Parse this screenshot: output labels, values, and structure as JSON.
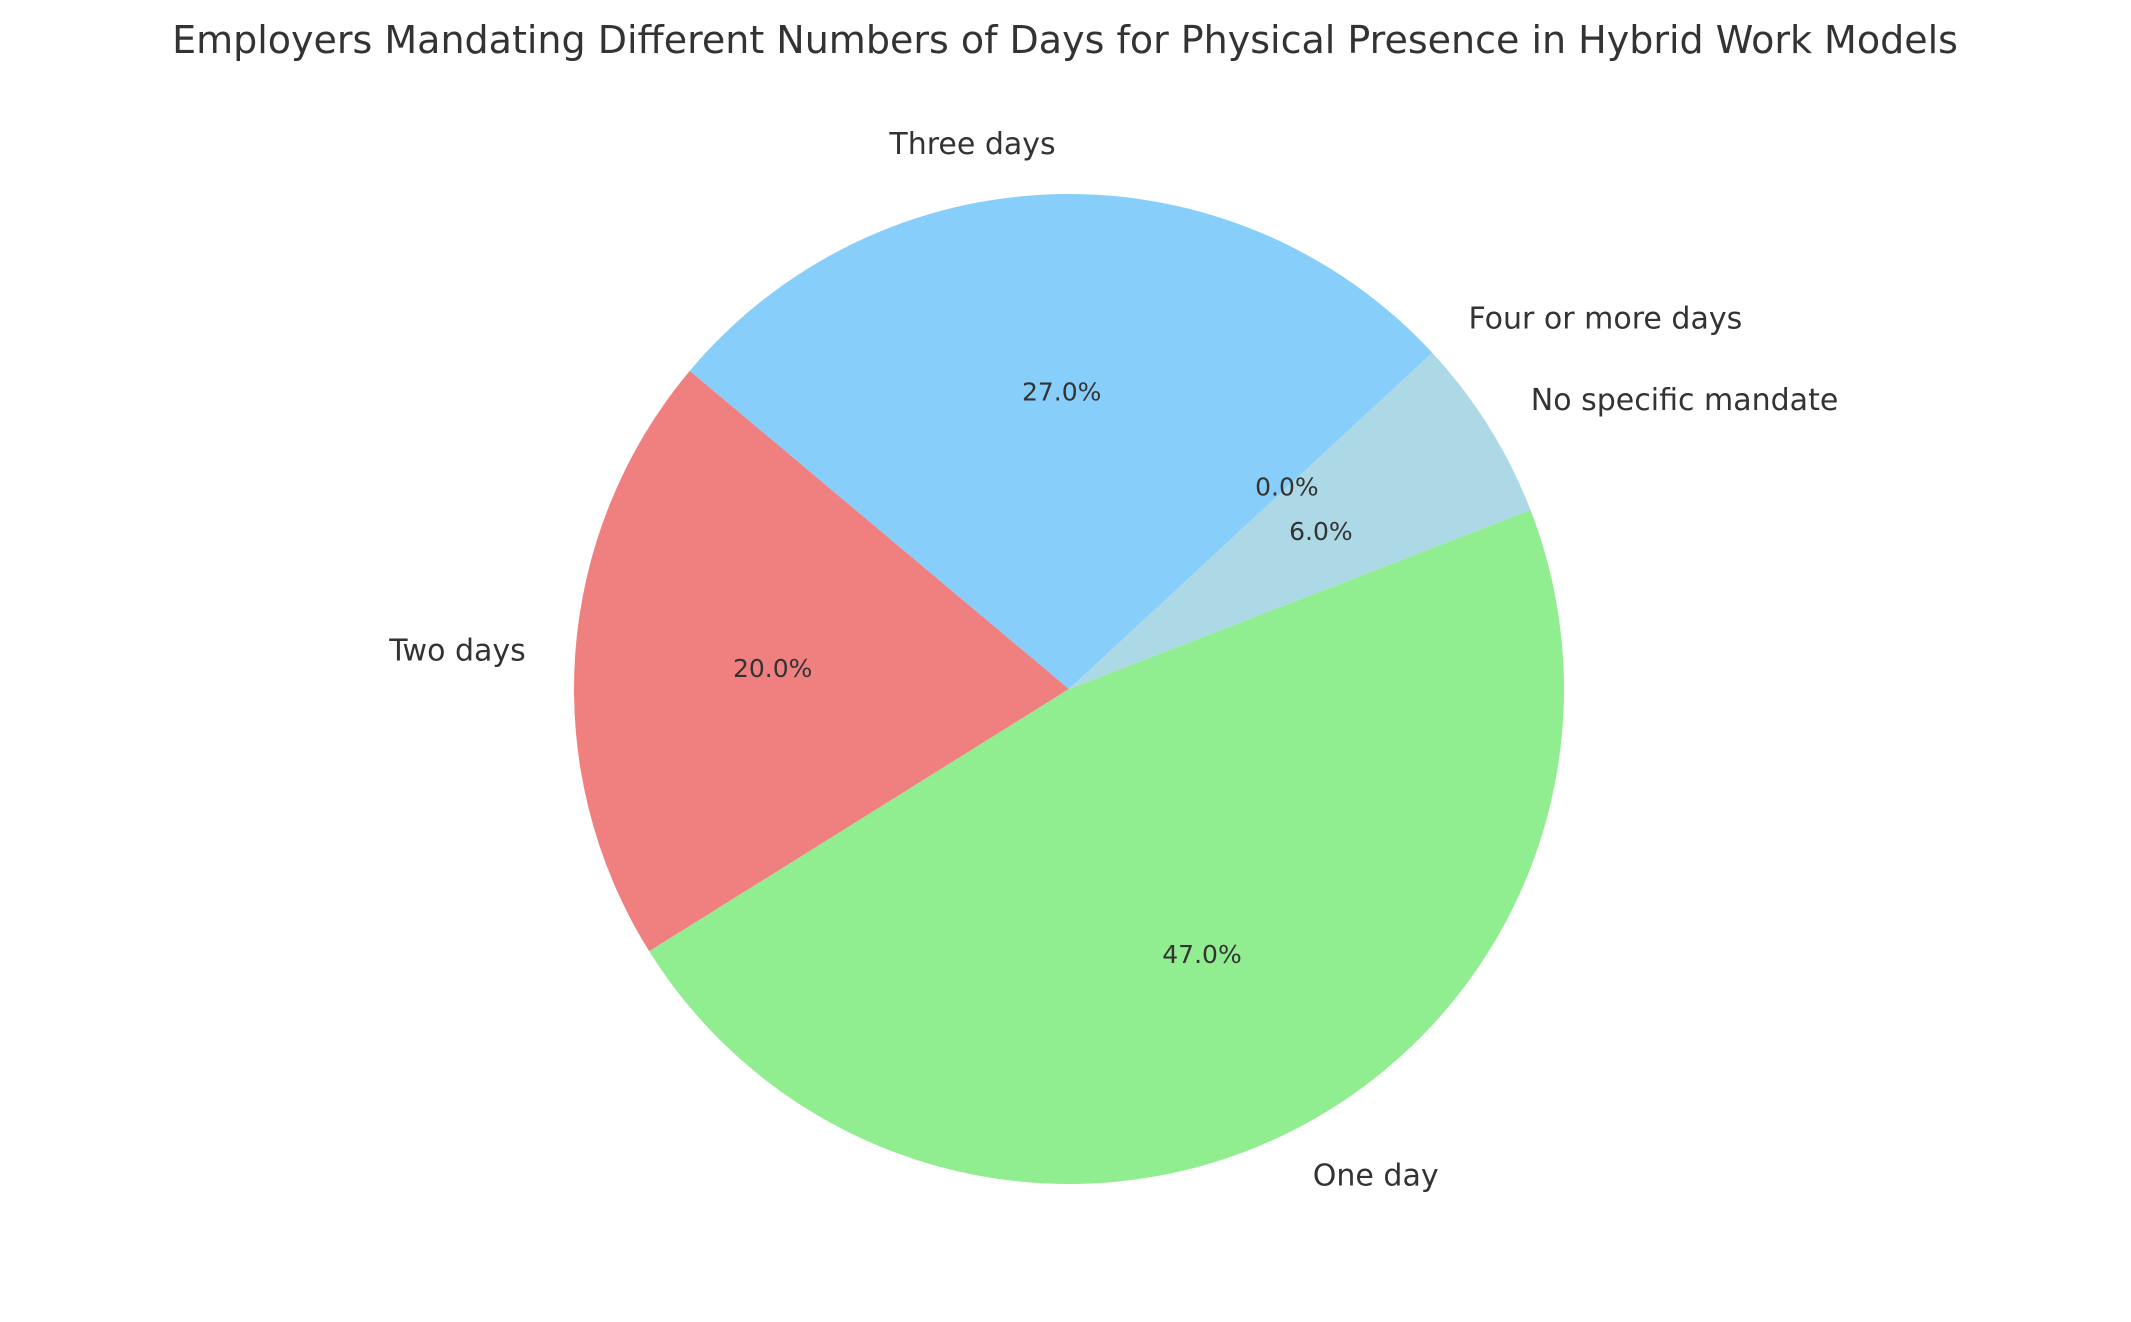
{
  "chart_data": {
    "type": "pie",
    "title": "Employers Mandating Different Numbers of Days for Physical Presence in Hybrid Work Models",
    "start_angle_deg": 140,
    "direction": "counterclockwise",
    "slices": [
      {
        "label": "Two days",
        "value": 20.0,
        "pct_text": "20.0%",
        "color": "#F08080"
      },
      {
        "label": "One day",
        "value": 47.0,
        "pct_text": "47.0%",
        "color": "#90EE90"
      },
      {
        "label": "No specific mandate",
        "value": 6.0,
        "pct_text": "6.0%",
        "color": "#ADD8E6"
      },
      {
        "label": "Four or more days",
        "value": 0.0,
        "pct_text": "0.0%",
        "color": "#FFD700"
      },
      {
        "label": "Three days",
        "value": 27.0,
        "pct_text": "27.0%",
        "color": "#87CEFA"
      }
    ]
  }
}
